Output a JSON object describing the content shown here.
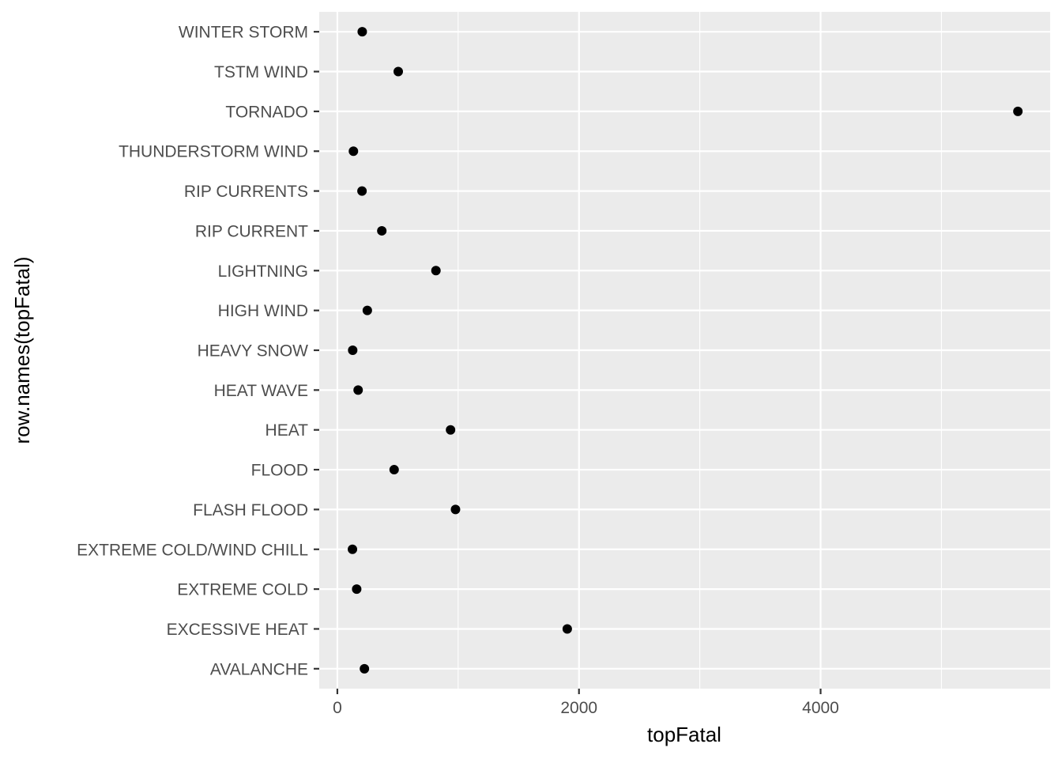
{
  "chart_data": {
    "type": "scatter",
    "title": "",
    "xlabel": "topFatal",
    "ylabel": "row.names(topFatal)",
    "xlim": [
      -150,
      5900
    ],
    "x_ticks": [
      0,
      2000,
      4000
    ],
    "x_tick_labels": [
      "0",
      "2000",
      "4000"
    ],
    "x_minor_ticks": [
      1000,
      3000,
      5000
    ],
    "grid": true,
    "legend": "none",
    "categories": [
      "AVALANCHE",
      "EXCESSIVE HEAT",
      "EXTREME COLD",
      "EXTREME COLD/WIND CHILL",
      "FLASH FLOOD",
      "FLOOD",
      "HEAT",
      "HEAT WAVE",
      "HEAVY SNOW",
      "HIGH WIND",
      "LIGHTNING",
      "RIP CURRENT",
      "RIP CURRENTS",
      "THUNDERSTORM WIND",
      "TORNADO",
      "TSTM WIND",
      "WINTER STORM"
    ],
    "values": [
      224,
      1903,
      160,
      125,
      978,
      470,
      937,
      172,
      127,
      248,
      816,
      368,
      204,
      133,
      5633,
      504,
      206
    ],
    "colors": {
      "panel": "#ebebeb",
      "grid": "#ffffff",
      "point": "#000000",
      "tick": "#333333",
      "tick_label": "#4d4d4d"
    }
  }
}
